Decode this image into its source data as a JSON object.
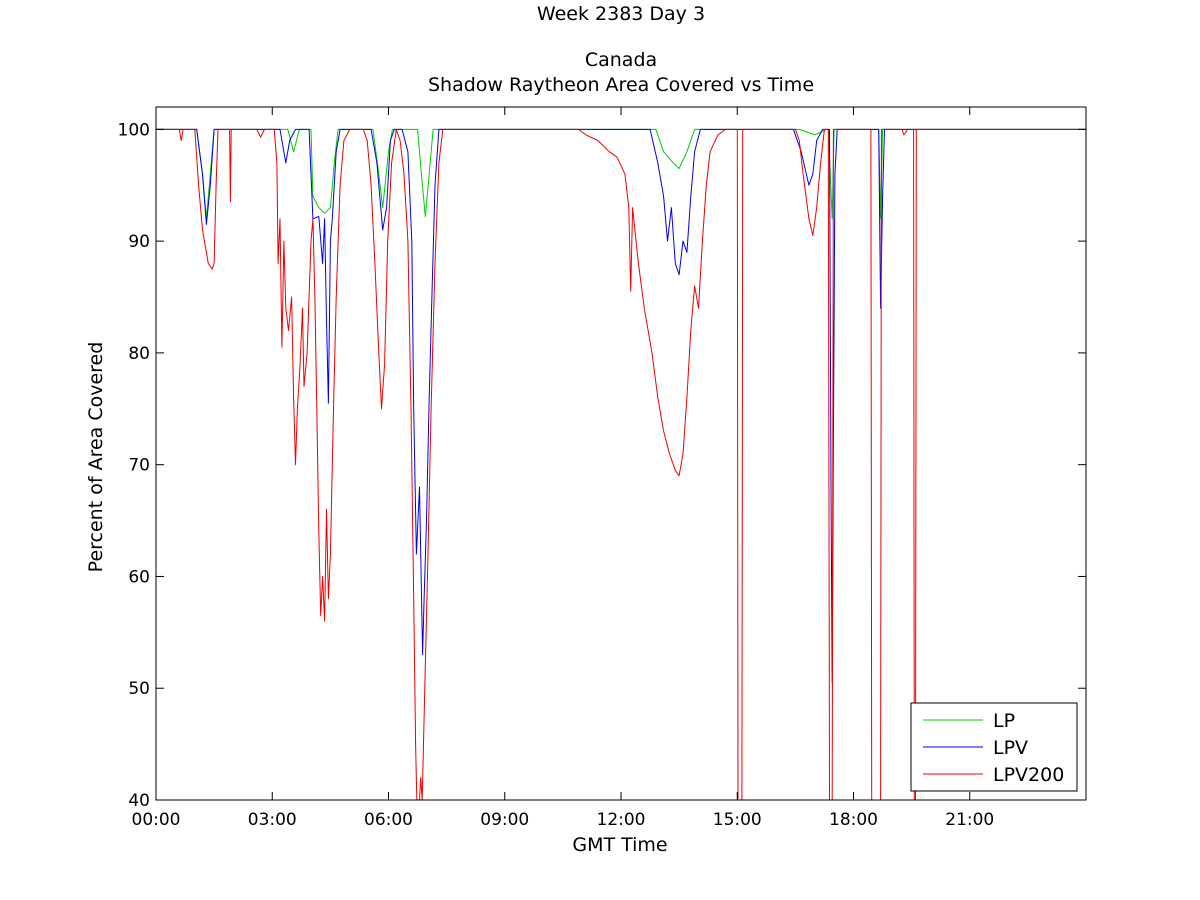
{
  "chart_data": {
    "type": "line",
    "title_lines": [
      "Week 2383 Day 3",
      "Canada",
      "Shadow Raytheon Area Covered vs Time"
    ],
    "xlabel": "GMT Time",
    "ylabel": "Percent of Area Covered",
    "xlim": [
      0,
      24
    ],
    "ylim": [
      40,
      102
    ],
    "x_ticks": [
      0,
      3,
      6,
      9,
      12,
      15,
      18,
      21
    ],
    "x_tick_labels": [
      "00:00",
      "03:00",
      "06:00",
      "09:00",
      "12:00",
      "15:00",
      "18:00",
      "21:00"
    ],
    "y_ticks": [
      40,
      50,
      60,
      70,
      80,
      90,
      100
    ],
    "y_tick_labels": [
      "40",
      "50",
      "60",
      "70",
      "80",
      "90",
      "100"
    ],
    "legend_position": "bottom-right",
    "grid": false,
    "series": [
      {
        "name": "LP",
        "color": "#00cc00",
        "points": [
          [
            0,
            100
          ],
          [
            1.05,
            100
          ],
          [
            1.2,
            96
          ],
          [
            1.3,
            92
          ],
          [
            1.4,
            96
          ],
          [
            1.5,
            100
          ],
          [
            3.4,
            100
          ],
          [
            3.55,
            98
          ],
          [
            3.7,
            100
          ],
          [
            4.0,
            100
          ],
          [
            4.05,
            94
          ],
          [
            4.2,
            93
          ],
          [
            4.35,
            92.5
          ],
          [
            4.5,
            93
          ],
          [
            4.6,
            97
          ],
          [
            4.7,
            100
          ],
          [
            5.6,
            100
          ],
          [
            5.75,
            96
          ],
          [
            5.85,
            93
          ],
          [
            6.0,
            98
          ],
          [
            6.1,
            100
          ],
          [
            6.75,
            100
          ],
          [
            6.85,
            96
          ],
          [
            6.95,
            92.2
          ],
          [
            7.05,
            96
          ],
          [
            7.15,
            100
          ],
          [
            12.9,
            100
          ],
          [
            13.1,
            98
          ],
          [
            13.35,
            97
          ],
          [
            13.5,
            96.5
          ],
          [
            13.7,
            98
          ],
          [
            13.9,
            100
          ],
          [
            16.6,
            100
          ],
          [
            17.0,
            99.5
          ],
          [
            17.3,
            100
          ],
          [
            17.35,
            100
          ],
          [
            17.45,
            92
          ],
          [
            17.5,
            100
          ],
          [
            18.65,
            100
          ],
          [
            18.7,
            92
          ],
          [
            18.75,
            100
          ],
          [
            24,
            100
          ]
        ]
      },
      {
        "name": "LPV",
        "color": "#0000ee",
        "points": [
          [
            0,
            100
          ],
          [
            1.05,
            100
          ],
          [
            1.2,
            96
          ],
          [
            1.3,
            91.5
          ],
          [
            1.4,
            95
          ],
          [
            1.5,
            100
          ],
          [
            3.2,
            100
          ],
          [
            3.3,
            98
          ],
          [
            3.35,
            97
          ],
          [
            3.45,
            99
          ],
          [
            3.6,
            100
          ],
          [
            3.95,
            100
          ],
          [
            4.05,
            92
          ],
          [
            4.2,
            92.2
          ],
          [
            4.3,
            88
          ],
          [
            4.35,
            92
          ],
          [
            4.4,
            83
          ],
          [
            4.45,
            75.5
          ],
          [
            4.5,
            90
          ],
          [
            4.55,
            92
          ],
          [
            4.65,
            98
          ],
          [
            4.75,
            100
          ],
          [
            5.55,
            100
          ],
          [
            5.7,
            97
          ],
          [
            5.85,
            91
          ],
          [
            5.95,
            93
          ],
          [
            6.05,
            99
          ],
          [
            6.15,
            100
          ],
          [
            6.35,
            100
          ],
          [
            6.5,
            98
          ],
          [
            6.6,
            90
          ],
          [
            6.65,
            75
          ],
          [
            6.72,
            62
          ],
          [
            6.8,
            68
          ],
          [
            6.88,
            53
          ],
          [
            6.92,
            58
          ],
          [
            6.98,
            65
          ],
          [
            7.05,
            76
          ],
          [
            7.12,
            85
          ],
          [
            7.2,
            95
          ],
          [
            7.3,
            100
          ],
          [
            12.75,
            100
          ],
          [
            12.95,
            97
          ],
          [
            13.1,
            94
          ],
          [
            13.2,
            90
          ],
          [
            13.3,
            93
          ],
          [
            13.4,
            88
          ],
          [
            13.5,
            87
          ],
          [
            13.6,
            90
          ],
          [
            13.7,
            89
          ],
          [
            13.8,
            94
          ],
          [
            13.9,
            98
          ],
          [
            14.05,
            100
          ],
          [
            16.45,
            100
          ],
          [
            16.65,
            98
          ],
          [
            16.85,
            95
          ],
          [
            16.95,
            96
          ],
          [
            17.05,
            99
          ],
          [
            17.2,
            100
          ],
          [
            17.38,
            100
          ],
          [
            17.42,
            68
          ],
          [
            17.45,
            50.5
          ],
          [
            17.48,
            72
          ],
          [
            17.52,
            96
          ],
          [
            17.58,
            100
          ],
          [
            18.65,
            100
          ],
          [
            18.7,
            84
          ],
          [
            18.75,
            94
          ],
          [
            18.8,
            100
          ],
          [
            24,
            100
          ]
        ]
      },
      {
        "name": "LPV200",
        "color": "#ee0000",
        "points": [
          [
            0,
            100
          ],
          [
            0.6,
            100
          ],
          [
            0.65,
            99
          ],
          [
            0.7,
            100
          ],
          [
            1.0,
            100
          ],
          [
            1.1,
            95
          ],
          [
            1.2,
            91
          ],
          [
            1.35,
            88
          ],
          [
            1.45,
            87.5
          ],
          [
            1.5,
            88
          ],
          [
            1.55,
            95
          ],
          [
            1.6,
            100
          ],
          [
            1.9,
            100
          ],
          [
            1.92,
            93.5
          ],
          [
            1.94,
            100
          ],
          [
            2.6,
            100
          ],
          [
            2.7,
            99.3
          ],
          [
            2.8,
            100
          ],
          [
            3.05,
            100
          ],
          [
            3.12,
            97
          ],
          [
            3.15,
            88
          ],
          [
            3.2,
            92
          ],
          [
            3.25,
            80.5
          ],
          [
            3.3,
            90
          ],
          [
            3.35,
            84
          ],
          [
            3.42,
            82
          ],
          [
            3.5,
            85
          ],
          [
            3.55,
            76
          ],
          [
            3.6,
            70
          ],
          [
            3.65,
            75
          ],
          [
            3.72,
            79
          ],
          [
            3.78,
            84
          ],
          [
            3.82,
            77
          ],
          [
            3.9,
            80
          ],
          [
            4.0,
            90
          ],
          [
            4.05,
            92
          ],
          [
            4.1,
            85
          ],
          [
            4.15,
            75
          ],
          [
            4.2,
            64
          ],
          [
            4.25,
            56.5
          ],
          [
            4.3,
            60
          ],
          [
            4.35,
            56
          ],
          [
            4.4,
            66
          ],
          [
            4.45,
            58
          ],
          [
            4.5,
            62
          ],
          [
            4.58,
            75
          ],
          [
            4.65,
            85
          ],
          [
            4.75,
            95
          ],
          [
            4.85,
            99
          ],
          [
            5.0,
            100
          ],
          [
            5.35,
            100
          ],
          [
            5.45,
            99
          ],
          [
            5.55,
            95
          ],
          [
            5.65,
            88
          ],
          [
            5.75,
            80
          ],
          [
            5.82,
            75
          ],
          [
            5.9,
            79
          ],
          [
            5.98,
            90
          ],
          [
            6.08,
            97
          ],
          [
            6.2,
            100
          ],
          [
            6.3,
            99
          ],
          [
            6.4,
            96
          ],
          [
            6.5,
            90
          ],
          [
            6.58,
            75
          ],
          [
            6.65,
            58
          ],
          [
            6.7,
            45
          ],
          [
            6.73,
            40
          ],
          [
            6.8,
            40
          ],
          [
            6.83,
            42
          ],
          [
            6.87,
            40
          ],
          [
            6.95,
            52
          ],
          [
            7.02,
            62
          ],
          [
            7.1,
            75
          ],
          [
            7.2,
            88
          ],
          [
            7.3,
            97
          ],
          [
            7.4,
            100
          ],
          [
            10.9,
            100
          ],
          [
            11.1,
            99.5
          ],
          [
            11.4,
            99
          ],
          [
            11.7,
            98
          ],
          [
            11.9,
            97.5
          ],
          [
            12.1,
            96
          ],
          [
            12.2,
            93
          ],
          [
            12.25,
            85.5
          ],
          [
            12.3,
            93
          ],
          [
            12.45,
            88
          ],
          [
            12.6,
            84
          ],
          [
            12.8,
            80
          ],
          [
            12.95,
            76
          ],
          [
            13.1,
            73
          ],
          [
            13.25,
            71
          ],
          [
            13.4,
            69.5
          ],
          [
            13.5,
            69
          ],
          [
            13.6,
            71
          ],
          [
            13.7,
            76
          ],
          [
            13.8,
            82
          ],
          [
            13.9,
            86
          ],
          [
            14.0,
            84
          ],
          [
            14.1,
            90
          ],
          [
            14.2,
            95
          ],
          [
            14.3,
            98
          ],
          [
            14.5,
            99.5
          ],
          [
            14.7,
            100
          ],
          [
            15.0,
            100
          ],
          [
            15.02,
            40
          ],
          [
            15.12,
            40
          ],
          [
            15.14,
            100
          ],
          [
            16.5,
            100
          ],
          [
            16.6,
            99
          ],
          [
            16.7,
            96
          ],
          [
            16.85,
            92
          ],
          [
            16.95,
            90.5
          ],
          [
            17.05,
            93
          ],
          [
            17.15,
            97
          ],
          [
            17.25,
            100
          ],
          [
            17.35,
            100
          ],
          [
            17.38,
            40
          ],
          [
            17.45,
            40
          ],
          [
            17.48,
            100
          ],
          [
            17.55,
            100
          ],
          [
            18.45,
            100
          ],
          [
            18.47,
            40
          ],
          [
            18.7,
            40
          ],
          [
            18.72,
            100
          ],
          [
            19.25,
            100
          ],
          [
            19.3,
            99.5
          ],
          [
            19.4,
            100
          ],
          [
            19.55,
            100
          ],
          [
            19.57,
            40
          ],
          [
            19.6,
            40
          ],
          [
            19.62,
            100
          ],
          [
            24,
            100
          ]
        ]
      }
    ]
  }
}
